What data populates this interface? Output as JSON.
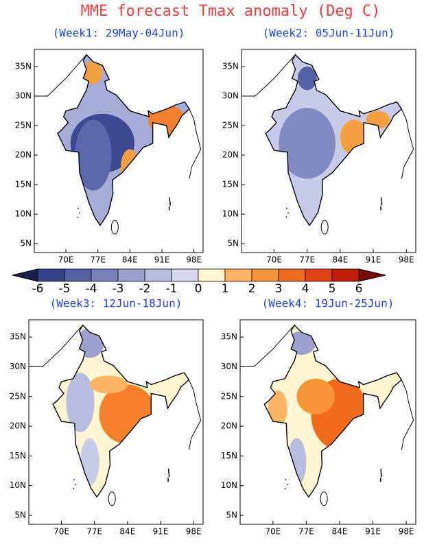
{
  "title": "MME forecast Tmax anomaly (Deg C)",
  "panels": [
    {
      "title": "(Week1: 29May-04Jun)"
    },
    {
      "title": "(Week2: 05Jun-11Jun)"
    },
    {
      "title": "(Week3: 12Jun-18Jun)"
    },
    {
      "title": "(Week4: 19Jun-25Jun)"
    }
  ],
  "lat_ticks": [
    {
      "value": 35,
      "label": "35N"
    },
    {
      "value": 30,
      "label": "30N"
    },
    {
      "value": 25,
      "label": "25N"
    },
    {
      "value": 20,
      "label": "20N"
    },
    {
      "value": 15,
      "label": "15N"
    },
    {
      "value": 10,
      "label": "10N"
    },
    {
      "value": 5,
      "label": "5N"
    }
  ],
  "lon_ticks": [
    {
      "value": 70,
      "label": "70E"
    },
    {
      "value": 77,
      "label": "77E"
    },
    {
      "value": 84,
      "label": "84E"
    },
    {
      "value": 91,
      "label": "91E"
    },
    {
      "value": 98,
      "label": "98E"
    }
  ],
  "colorbar": {
    "ticks": [
      -6,
      -5,
      -4,
      -3,
      -2,
      -1,
      0,
      1,
      2,
      3,
      4,
      5,
      6
    ],
    "colors": [
      "#1b1f4f",
      "#38448a",
      "#5561a4",
      "#7881b9",
      "#9ca2cc",
      "#b9bddd",
      "#d6d9ee",
      "#fff6d2",
      "#fdb563",
      "#f89538",
      "#f06a1c",
      "#df4210",
      "#c11e08",
      "#7a0a05"
    ]
  }
}
